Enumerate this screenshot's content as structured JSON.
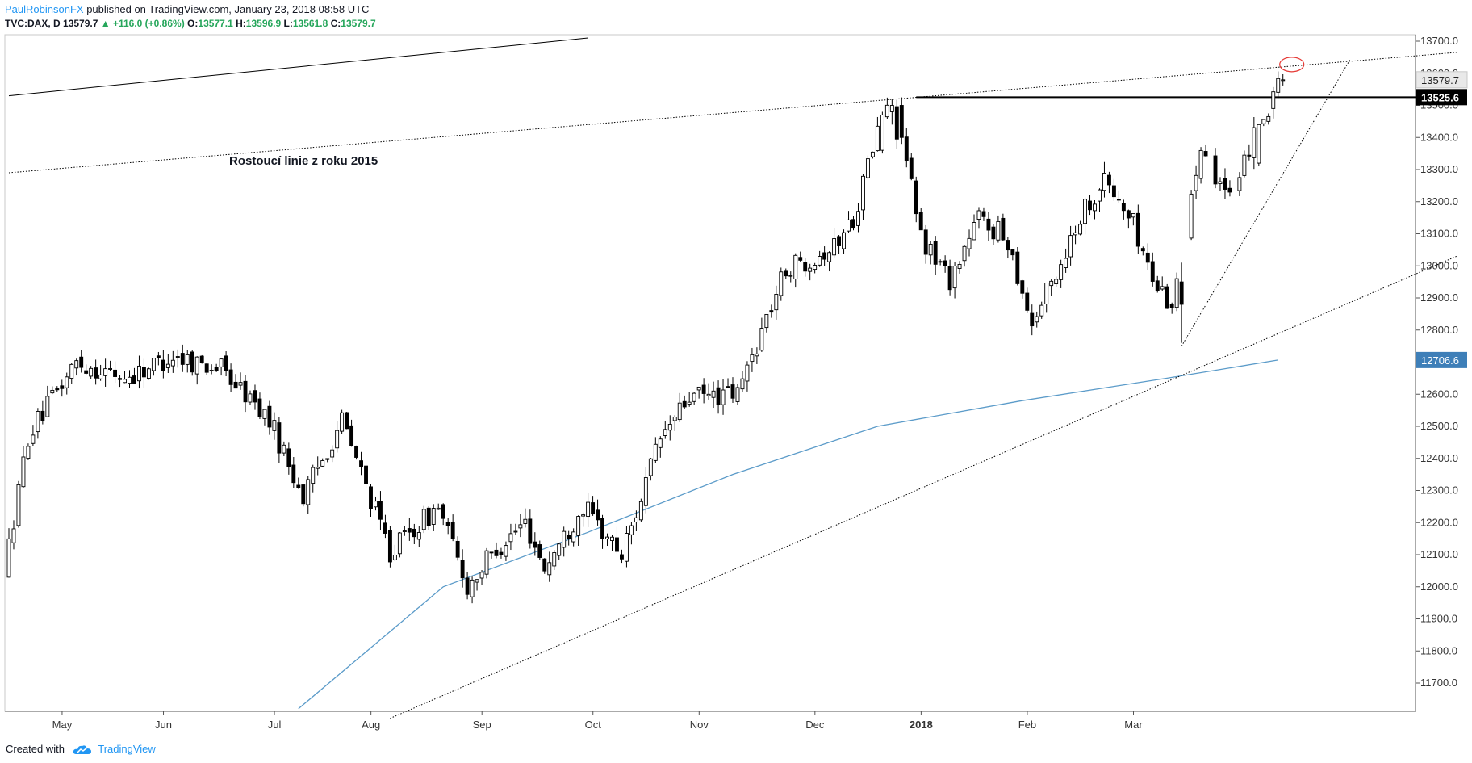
{
  "header": {
    "author": "PaulRobinsonFX",
    "published": "published on TradingView.com, January 23, 2018 08:58 UTC",
    "symbol": "TVC:DAX, D",
    "last": "13579.7",
    "change": "▲ +116.0 (+0.86%)",
    "open_label": "O:",
    "open": "13577.1",
    "high_label": "H:",
    "high": "13596.9",
    "low_label": "L:",
    "low": "13561.8",
    "close_label": "C:",
    "close": "13579.7"
  },
  "footer": {
    "created_with": "Created with",
    "brand": "TradingView",
    "logo_icon": "tradingview-cloud-icon"
  },
  "chart_data": {
    "type": "candlestick",
    "ylim": [
      11600,
      13700
    ],
    "yticks": [
      "11700.0",
      "11800.0",
      "11900.0",
      "12000.0",
      "12100.0",
      "12200.0",
      "12300.0",
      "12400.0",
      "12500.0",
      "12600.0",
      "12700.0",
      "12800.0",
      "12900.0",
      "13000.0",
      "13100.0",
      "13200.0",
      "13300.0",
      "13400.0",
      "13500.0",
      "13600.0",
      "13700.0"
    ],
    "xticks": [
      {
        "label": "May",
        "bold": false
      },
      {
        "label": "Jun",
        "bold": false
      },
      {
        "label": "Jul",
        "bold": false
      },
      {
        "label": "Aug",
        "bold": false
      },
      {
        "label": "Sep",
        "bold": false
      },
      {
        "label": "Oct",
        "bold": false
      },
      {
        "label": "Nov",
        "bold": false
      },
      {
        "label": "Dec",
        "bold": false
      },
      {
        "label": "2018",
        "bold": true
      },
      {
        "label": "Feb",
        "bold": false
      },
      {
        "label": "Mar",
        "bold": false
      }
    ],
    "price_labels": [
      {
        "value": "13579.7",
        "price": 13579.7,
        "style": "current"
      },
      {
        "value": "13525.6",
        "price": 13525.6,
        "style": "level"
      },
      {
        "value": "12706.6",
        "price": 12706.6,
        "style": "ma"
      }
    ],
    "annotation": "Rostoucí linie z roku 2015",
    "colors": {
      "ma": "#5b9bc9",
      "ma_label": "#3e7fb8",
      "level": "#000000",
      "circle": "#e53935",
      "up": "#ffffff",
      "down": "#000000"
    },
    "anchors": [
      [
        0,
        12040
      ],
      [
        5,
        12470
      ],
      [
        15,
        12700
      ],
      [
        25,
        12650
      ],
      [
        35,
        12720
      ],
      [
        45,
        12680
      ],
      [
        55,
        12520
      ],
      [
        62,
        12280
      ],
      [
        70,
        12520
      ],
      [
        80,
        12110
      ],
      [
        90,
        12250
      ],
      [
        96,
        12000
      ],
      [
        102,
        12120
      ],
      [
        108,
        12200
      ],
      [
        112,
        12060
      ],
      [
        120,
        12250
      ],
      [
        128,
        12100
      ],
      [
        136,
        12460
      ],
      [
        142,
        12590
      ],
      [
        152,
        12600
      ],
      [
        157,
        12800
      ],
      [
        162,
        12990
      ],
      [
        172,
        13060
      ],
      [
        176,
        13150
      ],
      [
        181,
        13420
      ],
      [
        183,
        13500
      ],
      [
        186,
        13390
      ],
      [
        190,
        13090
      ],
      [
        196,
        12960
      ],
      [
        202,
        13150
      ],
      [
        208,
        13080
      ],
      [
        213,
        12820
      ],
      [
        219,
        13010
      ],
      [
        223,
        13160
      ],
      [
        228,
        13270
      ],
      [
        234,
        13130
      ],
      [
        238,
        12960
      ],
      [
        242,
        12880
      ],
      [
        245,
        13160
      ],
      [
        248,
        13390
      ],
      [
        251,
        13290
      ],
      [
        255,
        13180
      ],
      [
        259,
        13440
      ],
      [
        261,
        13470
      ],
      [
        264,
        13580
      ]
    ],
    "sample_candles": {
      "_": [
        "index",
        "open",
        "high",
        "low",
        "close"
      ],
      "rows": [
        [
          181,
          13360,
          13480,
          13350,
          13470
        ],
        [
          183,
          13480,
          13520,
          13440,
          13500
        ],
        [
          185,
          13500,
          13525,
          13380,
          13400
        ],
        [
          243,
          12950,
          13010,
          12760,
          12880
        ],
        [
          259,
          13320,
          13440,
          13310,
          13440
        ],
        [
          261,
          13450,
          13475,
          13440,
          13465
        ],
        [
          264,
          13577.1,
          13596.9,
          13561.8,
          13579.7
        ]
      ]
    },
    "ma_series": [
      [
        60,
        11620
      ],
      [
        90,
        12000
      ],
      [
        120,
        12170
      ],
      [
        150,
        12350
      ],
      [
        180,
        12500
      ],
      [
        210,
        12580
      ],
      [
        240,
        12650
      ],
      [
        263,
        12706.6
      ]
    ],
    "lines": [
      {
        "name": "upper-black-trendline",
        "style": "solid",
        "p1": [
          0,
          13530
        ],
        "p2": [
          120,
          13710
        ]
      },
      {
        "name": "2015-rising-trendline",
        "style": "dotted",
        "p1": [
          0,
          13290
        ],
        "p2": [
          300,
          13665
        ]
      },
      {
        "name": "lower-long-trendline",
        "style": "dotted",
        "p1": [
          79,
          11590
        ],
        "p2": [
          300,
          13030
        ]
      },
      {
        "name": "short-rising-trendline",
        "style": "dotted",
        "p1": [
          243,
          12750
        ],
        "p2": [
          278,
          13645
        ]
      },
      {
        "name": "resistance-level",
        "style": "solid-thick",
        "p1": [
          188,
          13525.6
        ],
        "p2": [
          312,
          13525.6
        ]
      }
    ],
    "circle_at": [
      265,
      13635
    ]
  }
}
